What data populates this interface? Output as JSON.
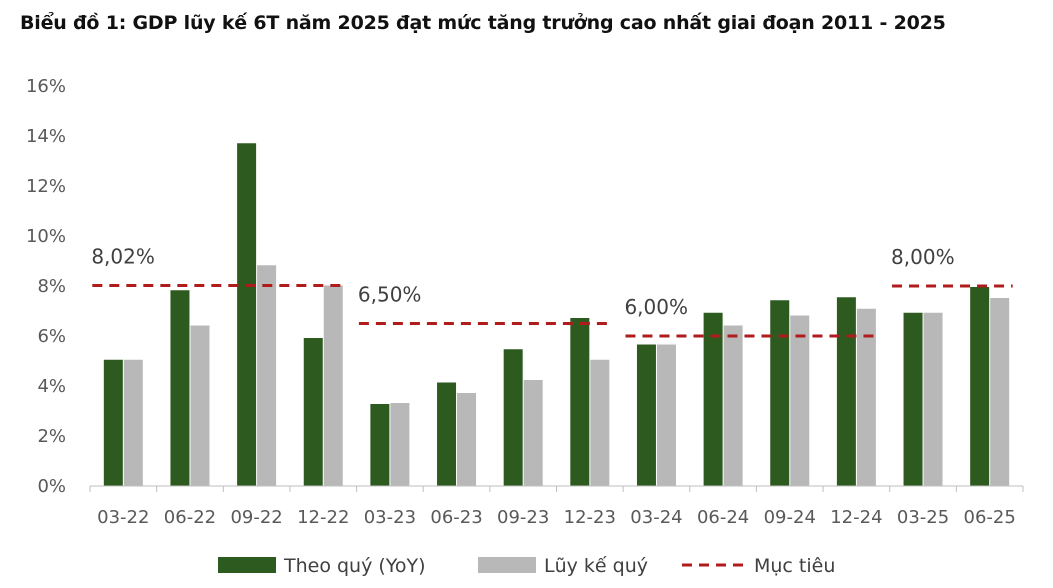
{
  "chart_data": {
    "type": "bar",
    "title": "Biểu đồ 1: GDP lũy kế 6T năm 2025 đạt mức tăng trưởng cao nhất giai đoạn 2011 - 2025",
    "xlabel": "",
    "ylabel": "",
    "ylim": [
      0,
      16
    ],
    "y_ticks": [
      "0%",
      "2%",
      "4%",
      "6%",
      "8%",
      "10%",
      "12%",
      "14%",
      "16%"
    ],
    "categories": [
      "03-22",
      "06-22",
      "09-22",
      "12-22",
      "03-23",
      "06-23",
      "09-23",
      "12-23",
      "03-24",
      "06-24",
      "09-24",
      "12-24",
      "03-25",
      "06-25"
    ],
    "series": [
      {
        "name": "Theo quý (YoY)",
        "color": "#2d5a1e",
        "values": [
          5.05,
          7.83,
          13.71,
          5.92,
          3.28,
          4.14,
          5.47,
          6.72,
          5.66,
          6.93,
          7.43,
          7.55,
          6.93,
          7.96
        ]
      },
      {
        "name": "Lũy kế quý",
        "color": "#b8b8b8",
        "values": [
          5.05,
          6.42,
          8.83,
          8.02,
          3.32,
          3.72,
          4.24,
          5.05,
          5.66,
          6.42,
          6.82,
          7.09,
          6.93,
          7.52
        ]
      }
    ],
    "targets": {
      "name": "Mục tiêu",
      "color": "#b01c1c",
      "segments": [
        {
          "from": "03-22",
          "to": "12-22",
          "value": 8.02,
          "label": "8,02%"
        },
        {
          "from": "03-23",
          "to": "12-23",
          "value": 6.5,
          "label": "6,50%"
        },
        {
          "from": "03-24",
          "to": "12-24",
          "value": 6.0,
          "label": "6,00%"
        },
        {
          "from": "03-25",
          "to": "06-25",
          "value": 8.0,
          "label": "8,00%"
        }
      ]
    },
    "grid": false,
    "legend_position": "bottom"
  }
}
